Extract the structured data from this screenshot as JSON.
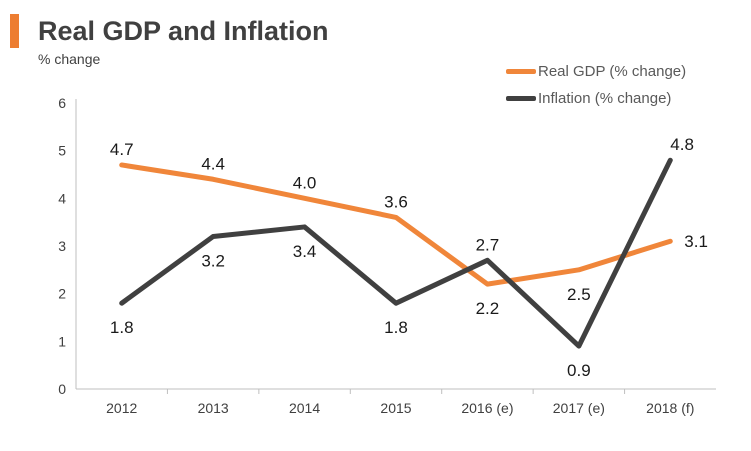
{
  "header": {
    "title": "Real GDP and Inflation",
    "unit_label": "% change",
    "accent_color": "#ED7D31"
  },
  "chart_data": {
    "type": "line",
    "title": "Real GDP and Inflation",
    "ylabel": "% change",
    "xlabel": "",
    "categories": [
      "2012",
      "2013",
      "2014",
      "2015",
      "2016 (e)",
      "2017 (e)",
      "2018 (f)"
    ],
    "ylim": [
      0,
      6
    ],
    "yticks": [
      0,
      1,
      2,
      3,
      4,
      5,
      6
    ],
    "grid": false,
    "legend_position": "top-right",
    "series": [
      {
        "name": "Real GDP (% change)",
        "color": "#F0863A",
        "values": [
          4.7,
          4.4,
          4.0,
          3.6,
          2.2,
          2.5,
          3.1
        ],
        "labels": [
          "4.7",
          "4.4",
          "4.0",
          "3.6",
          "2.2",
          "2.5",
          "3.1"
        ],
        "label_side": [
          "above",
          "above",
          "above",
          "above",
          "below",
          "below",
          "right"
        ]
      },
      {
        "name": "Inflation (% change)",
        "color": "#404040",
        "values": [
          1.8,
          3.2,
          3.4,
          1.8,
          2.7,
          0.9,
          4.8
        ],
        "labels": [
          "1.8",
          "3.2",
          "3.4",
          "1.8",
          "2.7",
          "0.9",
          "4.8"
        ],
        "label_side": [
          "below",
          "below",
          "below",
          "below",
          "above",
          "below",
          "above-right"
        ]
      }
    ]
  }
}
